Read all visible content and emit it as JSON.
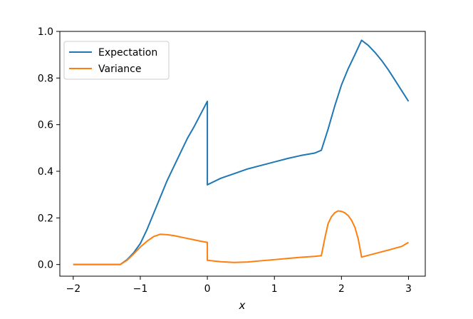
{
  "chart_data": {
    "type": "line",
    "title": "",
    "xlabel": "x",
    "ylabel": "",
    "xlim": [
      -2.2,
      3.25
    ],
    "ylim": [
      -0.05,
      1.0
    ],
    "x_ticks": [
      -2,
      -1,
      0,
      1,
      2,
      3
    ],
    "x_tick_labels": [
      "−2",
      "−1",
      "0",
      "1",
      "2",
      "3"
    ],
    "y_ticks": [
      0.0,
      0.2,
      0.4,
      0.6,
      0.8,
      1.0
    ],
    "y_tick_labels": [
      "0.0",
      "0.2",
      "0.4",
      "0.6",
      "0.8",
      "1.0"
    ],
    "grid": false,
    "legend": "top-left",
    "series": [
      {
        "name": "Expectation",
        "color": "#1f77b4",
        "points": [
          [
            -2.0,
            0.0
          ],
          [
            -1.5,
            0.0
          ],
          [
            -1.3,
            0.0
          ],
          [
            -1.2,
            0.02
          ],
          [
            -1.1,
            0.05
          ],
          [
            -1.0,
            0.09
          ],
          [
            -0.9,
            0.15
          ],
          [
            -0.8,
            0.22
          ],
          [
            -0.7,
            0.29
          ],
          [
            -0.6,
            0.36
          ],
          [
            -0.5,
            0.42
          ],
          [
            -0.4,
            0.48
          ],
          [
            -0.3,
            0.54
          ],
          [
            -0.2,
            0.59
          ],
          [
            -0.1,
            0.645
          ],
          [
            0.0,
            0.7
          ],
          [
            0.0,
            0.342
          ],
          [
            0.2,
            0.37
          ],
          [
            0.4,
            0.39
          ],
          [
            0.6,
            0.41
          ],
          [
            0.8,
            0.425
          ],
          [
            1.0,
            0.44
          ],
          [
            1.2,
            0.455
          ],
          [
            1.4,
            0.468
          ],
          [
            1.6,
            0.478
          ],
          [
            1.7,
            0.49
          ],
          [
            1.8,
            0.58
          ],
          [
            1.9,
            0.68
          ],
          [
            2.0,
            0.77
          ],
          [
            2.1,
            0.84
          ],
          [
            2.2,
            0.9
          ],
          [
            2.3,
            0.962
          ],
          [
            2.4,
            0.94
          ],
          [
            2.5,
            0.91
          ],
          [
            2.6,
            0.875
          ],
          [
            2.7,
            0.835
          ],
          [
            2.8,
            0.79
          ],
          [
            2.9,
            0.745
          ],
          [
            3.0,
            0.7
          ]
        ]
      },
      {
        "name": "Variance",
        "color": "#ff7f0e",
        "points": [
          [
            -2.0,
            0.0
          ],
          [
            -1.5,
            0.0
          ],
          [
            -1.3,
            0.0
          ],
          [
            -1.2,
            0.018
          ],
          [
            -1.1,
            0.045
          ],
          [
            -1.0,
            0.075
          ],
          [
            -0.9,
            0.1
          ],
          [
            -0.8,
            0.12
          ],
          [
            -0.7,
            0.13
          ],
          [
            -0.6,
            0.128
          ],
          [
            -0.5,
            0.124
          ],
          [
            -0.4,
            0.118
          ],
          [
            -0.3,
            0.112
          ],
          [
            -0.2,
            0.106
          ],
          [
            -0.1,
            0.1
          ],
          [
            0.0,
            0.095
          ],
          [
            0.0,
            0.018
          ],
          [
            0.2,
            0.012
          ],
          [
            0.4,
            0.009
          ],
          [
            0.6,
            0.011
          ],
          [
            0.8,
            0.016
          ],
          [
            1.0,
            0.021
          ],
          [
            1.2,
            0.026
          ],
          [
            1.4,
            0.031
          ],
          [
            1.6,
            0.035
          ],
          [
            1.7,
            0.038
          ],
          [
            1.75,
            0.11
          ],
          [
            1.8,
            0.175
          ],
          [
            1.85,
            0.205
          ],
          [
            1.9,
            0.222
          ],
          [
            1.95,
            0.23
          ],
          [
            2.0,
            0.228
          ],
          [
            2.05,
            0.222
          ],
          [
            2.1,
            0.21
          ],
          [
            2.15,
            0.19
          ],
          [
            2.2,
            0.16
          ],
          [
            2.25,
            0.11
          ],
          [
            2.3,
            0.032
          ],
          [
            2.5,
            0.047
          ],
          [
            2.7,
            0.062
          ],
          [
            2.9,
            0.078
          ],
          [
            3.0,
            0.095
          ]
        ]
      }
    ]
  }
}
